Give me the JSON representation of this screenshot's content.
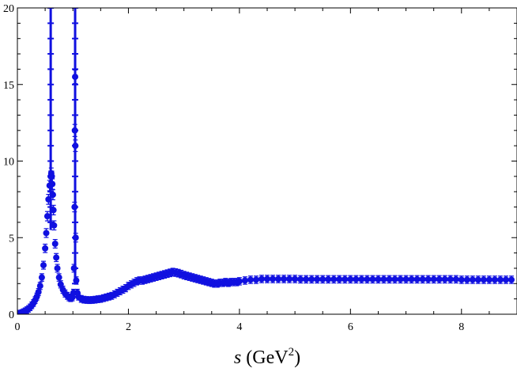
{
  "chart_data": {
    "type": "scatter",
    "title": "",
    "xlabel": {
      "var": "s",
      "unit_main": "(GeV",
      "unit_sup": "2",
      "unit_close": ")"
    },
    "ylabel": "",
    "xlim": [
      0,
      9
    ],
    "ylim": [
      0,
      20
    ],
    "grid": false,
    "legend": "none",
    "marker_color": "#1010e0",
    "x_ticks": [
      0,
      2,
      4,
      6,
      8
    ],
    "y_ticks": [
      0,
      5,
      10,
      15,
      20
    ],
    "x_tick_labels": [
      "0",
      "2",
      "4",
      "6",
      "8"
    ],
    "y_tick_labels": [
      "0",
      "5",
      "10",
      "15",
      "20"
    ],
    "series": [
      {
        "marker": "point-with-error-bar",
        "points": [
          [
            0.02,
            0.02
          ],
          [
            0.05,
            0.05
          ],
          [
            0.08,
            0.09
          ],
          [
            0.11,
            0.14
          ],
          [
            0.14,
            0.2
          ],
          [
            0.17,
            0.27
          ],
          [
            0.2,
            0.35
          ],
          [
            0.23,
            0.45
          ],
          [
            0.26,
            0.58
          ],
          [
            0.29,
            0.73
          ],
          [
            0.32,
            0.92
          ],
          [
            0.35,
            1.15
          ],
          [
            0.38,
            1.45
          ],
          [
            0.41,
            1.85
          ],
          [
            0.44,
            2.4
          ],
          [
            0.47,
            3.2
          ],
          [
            0.5,
            4.3
          ],
          [
            0.52,
            5.3
          ],
          [
            0.54,
            6.4
          ],
          [
            0.56,
            7.5
          ],
          [
            0.58,
            8.4
          ],
          [
            0.6,
            9.0
          ],
          [
            0.61,
            9.2
          ],
          [
            0.62,
            9.0
          ],
          [
            0.63,
            8.5
          ],
          [
            0.64,
            7.8
          ],
          [
            0.65,
            6.8
          ],
          [
            0.66,
            5.8
          ],
          [
            0.68,
            4.6
          ],
          [
            0.7,
            3.7
          ],
          [
            0.72,
            3.0
          ],
          [
            0.75,
            2.4
          ],
          [
            0.78,
            1.95
          ],
          [
            0.82,
            1.6
          ],
          [
            0.86,
            1.35
          ],
          [
            0.9,
            1.2
          ],
          [
            0.93,
            1.1
          ],
          [
            0.96,
            1.05
          ],
          [
            0.99,
            1.1
          ],
          [
            1.01,
            1.4
          ],
          [
            1.02,
            3.0
          ],
          [
            1.03,
            7.0
          ],
          [
            1.035,
            12.0
          ],
          [
            1.04,
            15.5
          ],
          [
            1.045,
            11.0
          ],
          [
            1.05,
            5.0
          ],
          [
            1.06,
            2.2
          ],
          [
            1.08,
            1.4
          ],
          [
            1.1,
            1.15
          ],
          [
            1.15,
            1.0
          ],
          [
            1.2,
            0.95
          ],
          [
            1.25,
            0.93
          ],
          [
            1.3,
            0.92
          ],
          [
            1.35,
            0.93
          ],
          [
            1.4,
            0.95
          ],
          [
            1.45,
            0.98
          ],
          [
            1.5,
            1.0
          ],
          [
            1.55,
            1.05
          ],
          [
            1.6,
            1.1
          ],
          [
            1.65,
            1.15
          ],
          [
            1.7,
            1.2
          ],
          [
            1.75,
            1.3
          ],
          [
            1.8,
            1.4
          ],
          [
            1.85,
            1.5
          ],
          [
            1.9,
            1.6
          ],
          [
            1.95,
            1.7
          ],
          [
            2.0,
            1.85
          ],
          [
            2.05,
            1.95
          ],
          [
            2.1,
            2.05
          ],
          [
            2.15,
            2.15
          ],
          [
            2.2,
            2.2
          ],
          [
            2.25,
            2.2
          ],
          [
            2.3,
            2.25
          ],
          [
            2.35,
            2.3
          ],
          [
            2.4,
            2.35
          ],
          [
            2.45,
            2.4
          ],
          [
            2.5,
            2.45
          ],
          [
            2.55,
            2.5
          ],
          [
            2.6,
            2.55
          ],
          [
            2.65,
            2.6
          ],
          [
            2.7,
            2.65
          ],
          [
            2.75,
            2.7
          ],
          [
            2.8,
            2.75
          ],
          [
            2.85,
            2.72
          ],
          [
            2.9,
            2.68
          ],
          [
            2.95,
            2.62
          ],
          [
            3.0,
            2.55
          ],
          [
            3.05,
            2.5
          ],
          [
            3.1,
            2.45
          ],
          [
            3.15,
            2.4
          ],
          [
            3.2,
            2.35
          ],
          [
            3.25,
            2.3
          ],
          [
            3.3,
            2.25
          ],
          [
            3.35,
            2.2
          ],
          [
            3.4,
            2.15
          ],
          [
            3.45,
            2.1
          ],
          [
            3.5,
            2.05
          ],
          [
            3.55,
            2.0
          ],
          [
            3.6,
            2.0
          ],
          [
            3.65,
            2.05
          ],
          [
            3.7,
            2.05
          ],
          [
            3.75,
            2.1
          ],
          [
            3.8,
            2.05
          ],
          [
            3.85,
            2.1
          ],
          [
            3.9,
            2.1
          ],
          [
            3.95,
            2.1
          ],
          [
            4.0,
            2.15
          ],
          [
            4.1,
            2.2
          ],
          [
            4.2,
            2.25
          ],
          [
            4.3,
            2.25
          ],
          [
            4.4,
            2.3
          ],
          [
            4.5,
            2.3
          ],
          [
            4.6,
            2.3
          ],
          [
            4.7,
            2.3
          ],
          [
            4.8,
            2.3
          ],
          [
            4.9,
            2.3
          ],
          [
            5.0,
            2.3
          ],
          [
            5.1,
            2.28
          ],
          [
            5.2,
            2.28
          ],
          [
            5.3,
            2.28
          ],
          [
            5.4,
            2.28
          ],
          [
            5.5,
            2.28
          ],
          [
            5.6,
            2.28
          ],
          [
            5.7,
            2.28
          ],
          [
            5.8,
            2.28
          ],
          [
            5.9,
            2.28
          ],
          [
            6.0,
            2.28
          ],
          [
            6.1,
            2.28
          ],
          [
            6.2,
            2.28
          ],
          [
            6.3,
            2.28
          ],
          [
            6.4,
            2.28
          ],
          [
            6.5,
            2.28
          ],
          [
            6.6,
            2.28
          ],
          [
            6.7,
            2.28
          ],
          [
            6.8,
            2.28
          ],
          [
            6.9,
            2.28
          ],
          [
            7.0,
            2.28
          ],
          [
            7.1,
            2.28
          ],
          [
            7.2,
            2.28
          ],
          [
            7.3,
            2.28
          ],
          [
            7.4,
            2.28
          ],
          [
            7.5,
            2.28
          ],
          [
            7.6,
            2.28
          ],
          [
            7.7,
            2.28
          ],
          [
            7.8,
            2.28
          ],
          [
            7.9,
            2.28
          ],
          [
            8.0,
            2.25
          ],
          [
            8.1,
            2.25
          ],
          [
            8.2,
            2.25
          ],
          [
            8.3,
            2.25
          ],
          [
            8.4,
            2.25
          ],
          [
            8.5,
            2.25
          ],
          [
            8.6,
            2.25
          ],
          [
            8.7,
            2.25
          ],
          [
            8.8,
            2.25
          ],
          [
            8.9,
            2.25
          ]
        ],
        "stacks": [
          {
            "x": 0.6,
            "ymin": 5.5,
            "ymax": 20,
            "values": [
              6,
              7,
              8,
              9,
              10,
              11,
              12,
              13,
              14,
              15,
              16,
              17,
              18,
              19,
              20
            ]
          },
          {
            "x": 1.04,
            "ymin": 2.0,
            "ymax": 20,
            "values": [
              2,
              3,
              4,
              5,
              6,
              7,
              8,
              9,
              10,
              11,
              12,
              13,
              14,
              15,
              16,
              17,
              18,
              19,
              20
            ]
          }
        ]
      }
    ]
  }
}
